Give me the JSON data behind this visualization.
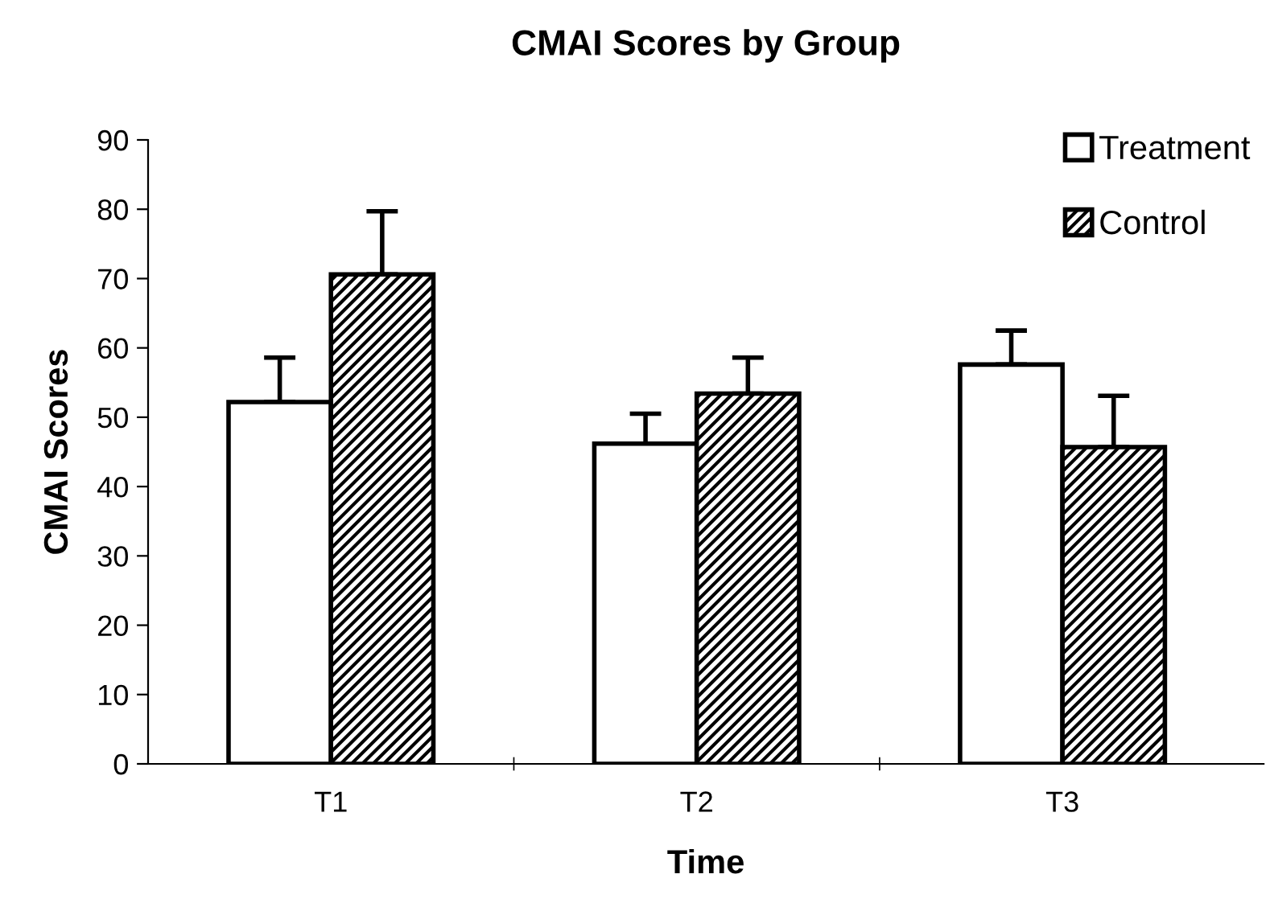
{
  "chart_data": {
    "type": "bar",
    "title": "CMAI Scores by Group",
    "xlabel": "Time",
    "ylabel": "CMAI Scores",
    "categories": [
      "T1",
      "T2",
      "T3"
    ],
    "series": [
      {
        "name": "Treatment",
        "color": "#ffffff",
        "values": [
          52.2,
          46.2,
          57.6
        ],
        "errors": [
          [
            52.2,
            58.6
          ],
          [
            46.2,
            50.5
          ],
          [
            57.6,
            62.5
          ]
        ]
      },
      {
        "name": "Control",
        "color": "#000000",
        "values": [
          70.6,
          53.4,
          45.7
        ],
        "errors": [
          [
            70.6,
            79.7
          ],
          [
            53.4,
            58.6
          ],
          [
            45.7,
            53.1
          ]
        ]
      }
    ],
    "ylim": [
      0,
      90
    ],
    "yticks": [
      0,
      10,
      20,
      30,
      40,
      50,
      60,
      70,
      80,
      90
    ],
    "grid": false,
    "legend": "top right"
  }
}
